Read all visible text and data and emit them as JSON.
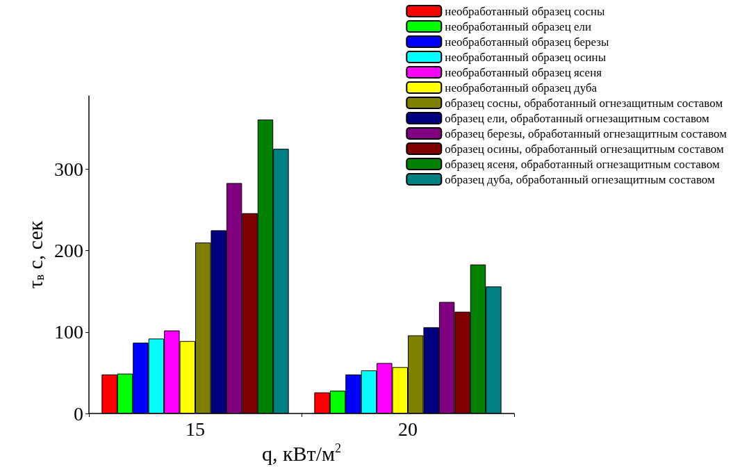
{
  "chart_data": {
    "type": "bar",
    "xlabel": "q, кВт/м$^{2}$",
    "ylabel": "τ$_{в}$ с, сек",
    "categories": [
      "15",
      "20"
    ],
    "series": [
      {
        "name": "необработанный образец сосны",
        "color": "#ff0000",
        "values": [
          48,
          26
        ]
      },
      {
        "name": "необработанный образец ели",
        "color": "#00ff00",
        "values": [
          49,
          28
        ]
      },
      {
        "name": "необработанный образец березы",
        "color": "#0000ff",
        "values": [
          87,
          48
        ]
      },
      {
        "name": "необработанный образец осины",
        "color": "#00ffff",
        "values": [
          92,
          53
        ]
      },
      {
        "name": "необработанный образец ясеня",
        "color": "#ff00ff",
        "values": [
          102,
          62
        ]
      },
      {
        "name": "необработанный образец дуба",
        "color": "#ffff00",
        "values": [
          89,
          57
        ]
      },
      {
        "name": "образец сосны, обработанный огнезащитным составом",
        "color": "#808000",
        "values": [
          210,
          96
        ]
      },
      {
        "name": "образец ели, обработанный огнезащитным составом",
        "color": "#000080",
        "values": [
          225,
          106
        ]
      },
      {
        "name": "образец березы, обработанный огнезащитным составом",
        "color": "#800080",
        "values": [
          283,
          137
        ]
      },
      {
        "name": "образец осины, обработанный огнезащитным составом",
        "color": "#800000",
        "values": [
          246,
          125
        ]
      },
      {
        "name": "образец ясеня, обработанный огнезащитным составом",
        "color": "#008000",
        "values": [
          361,
          183
        ]
      },
      {
        "name": "образец дуба, обработанный огнезащитным составом",
        "color": "#008080",
        "values": [
          325,
          156
        ]
      }
    ],
    "ylim": [
      0,
      390
    ],
    "yticks": [
      0,
      100,
      200,
      300
    ],
    "grid": false,
    "legend": "top right"
  }
}
